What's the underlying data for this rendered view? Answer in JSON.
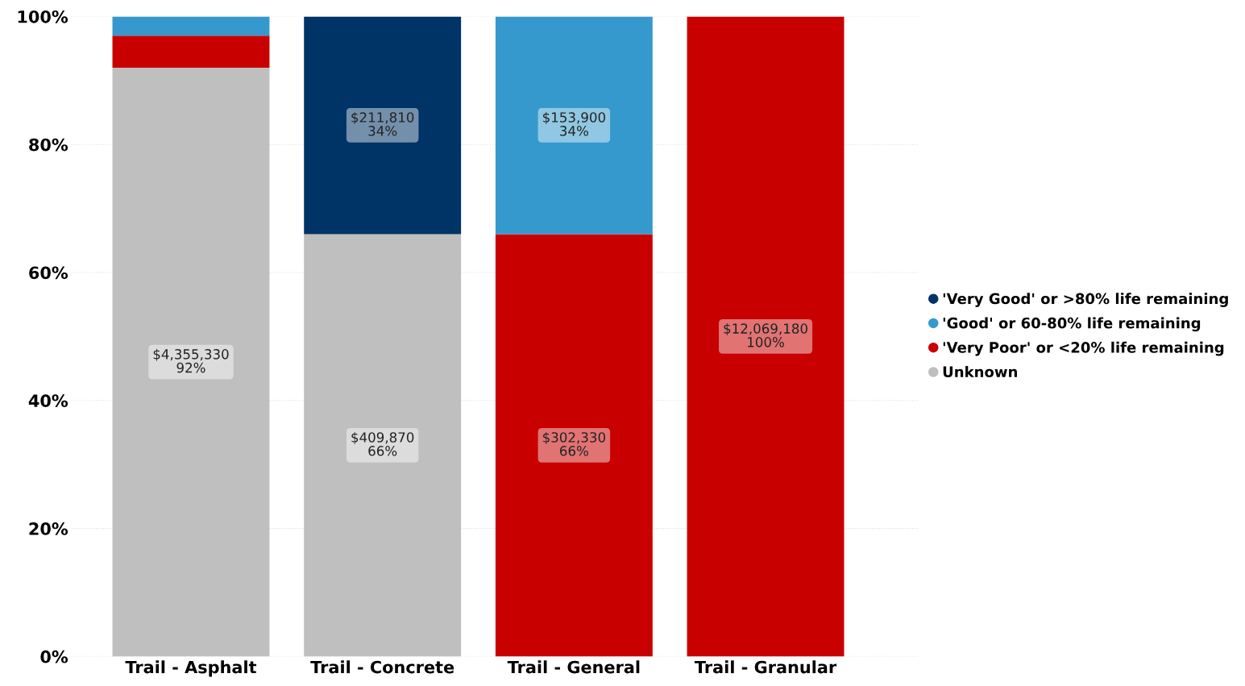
{
  "chart_data": {
    "type": "bar",
    "stacked": true,
    "categories": [
      "Trail - Asphalt",
      "Trail - Concrete",
      "Trail - General",
      "Trail - Granular"
    ],
    "series": [
      {
        "name": "Unknown",
        "color": "#bfbfbf",
        "values": [
          92,
          66,
          0,
          0
        ],
        "value_labels": [
          "$4,355,330\n92%",
          "$409,870\n66%",
          null,
          null
        ]
      },
      {
        "name": "'Very Poor' or <20% life remaining",
        "color": "#c80000",
        "values": [
          5,
          0,
          66,
          100
        ],
        "value_labels": [
          null,
          null,
          "$302,330\n66%",
          "$12,069,180\n100%"
        ]
      },
      {
        "name": "'Good' or 60-80% life remaining",
        "color": "#3599cd",
        "values": [
          3,
          0,
          34,
          0
        ],
        "value_labels": [
          null,
          null,
          "$153,900\n34%",
          null
        ]
      },
      {
        "name": "'Very Good' or >80% life remaining",
        "color": "#003366",
        "values": [
          0,
          34,
          0,
          0
        ],
        "value_labels": [
          null,
          "$211,810\n34%",
          null,
          null
        ]
      }
    ],
    "ylim": [
      0,
      100
    ],
    "yticks": [
      {
        "value": 0,
        "label": "0%"
      },
      {
        "value": 20,
        "label": "20%"
      },
      {
        "value": 40,
        "label": "40%"
      },
      {
        "value": 60,
        "label": "60%"
      },
      {
        "value": 80,
        "label": "80%"
      },
      {
        "value": 100,
        "label": "100%"
      }
    ],
    "grid": "y",
    "legend": "right"
  }
}
